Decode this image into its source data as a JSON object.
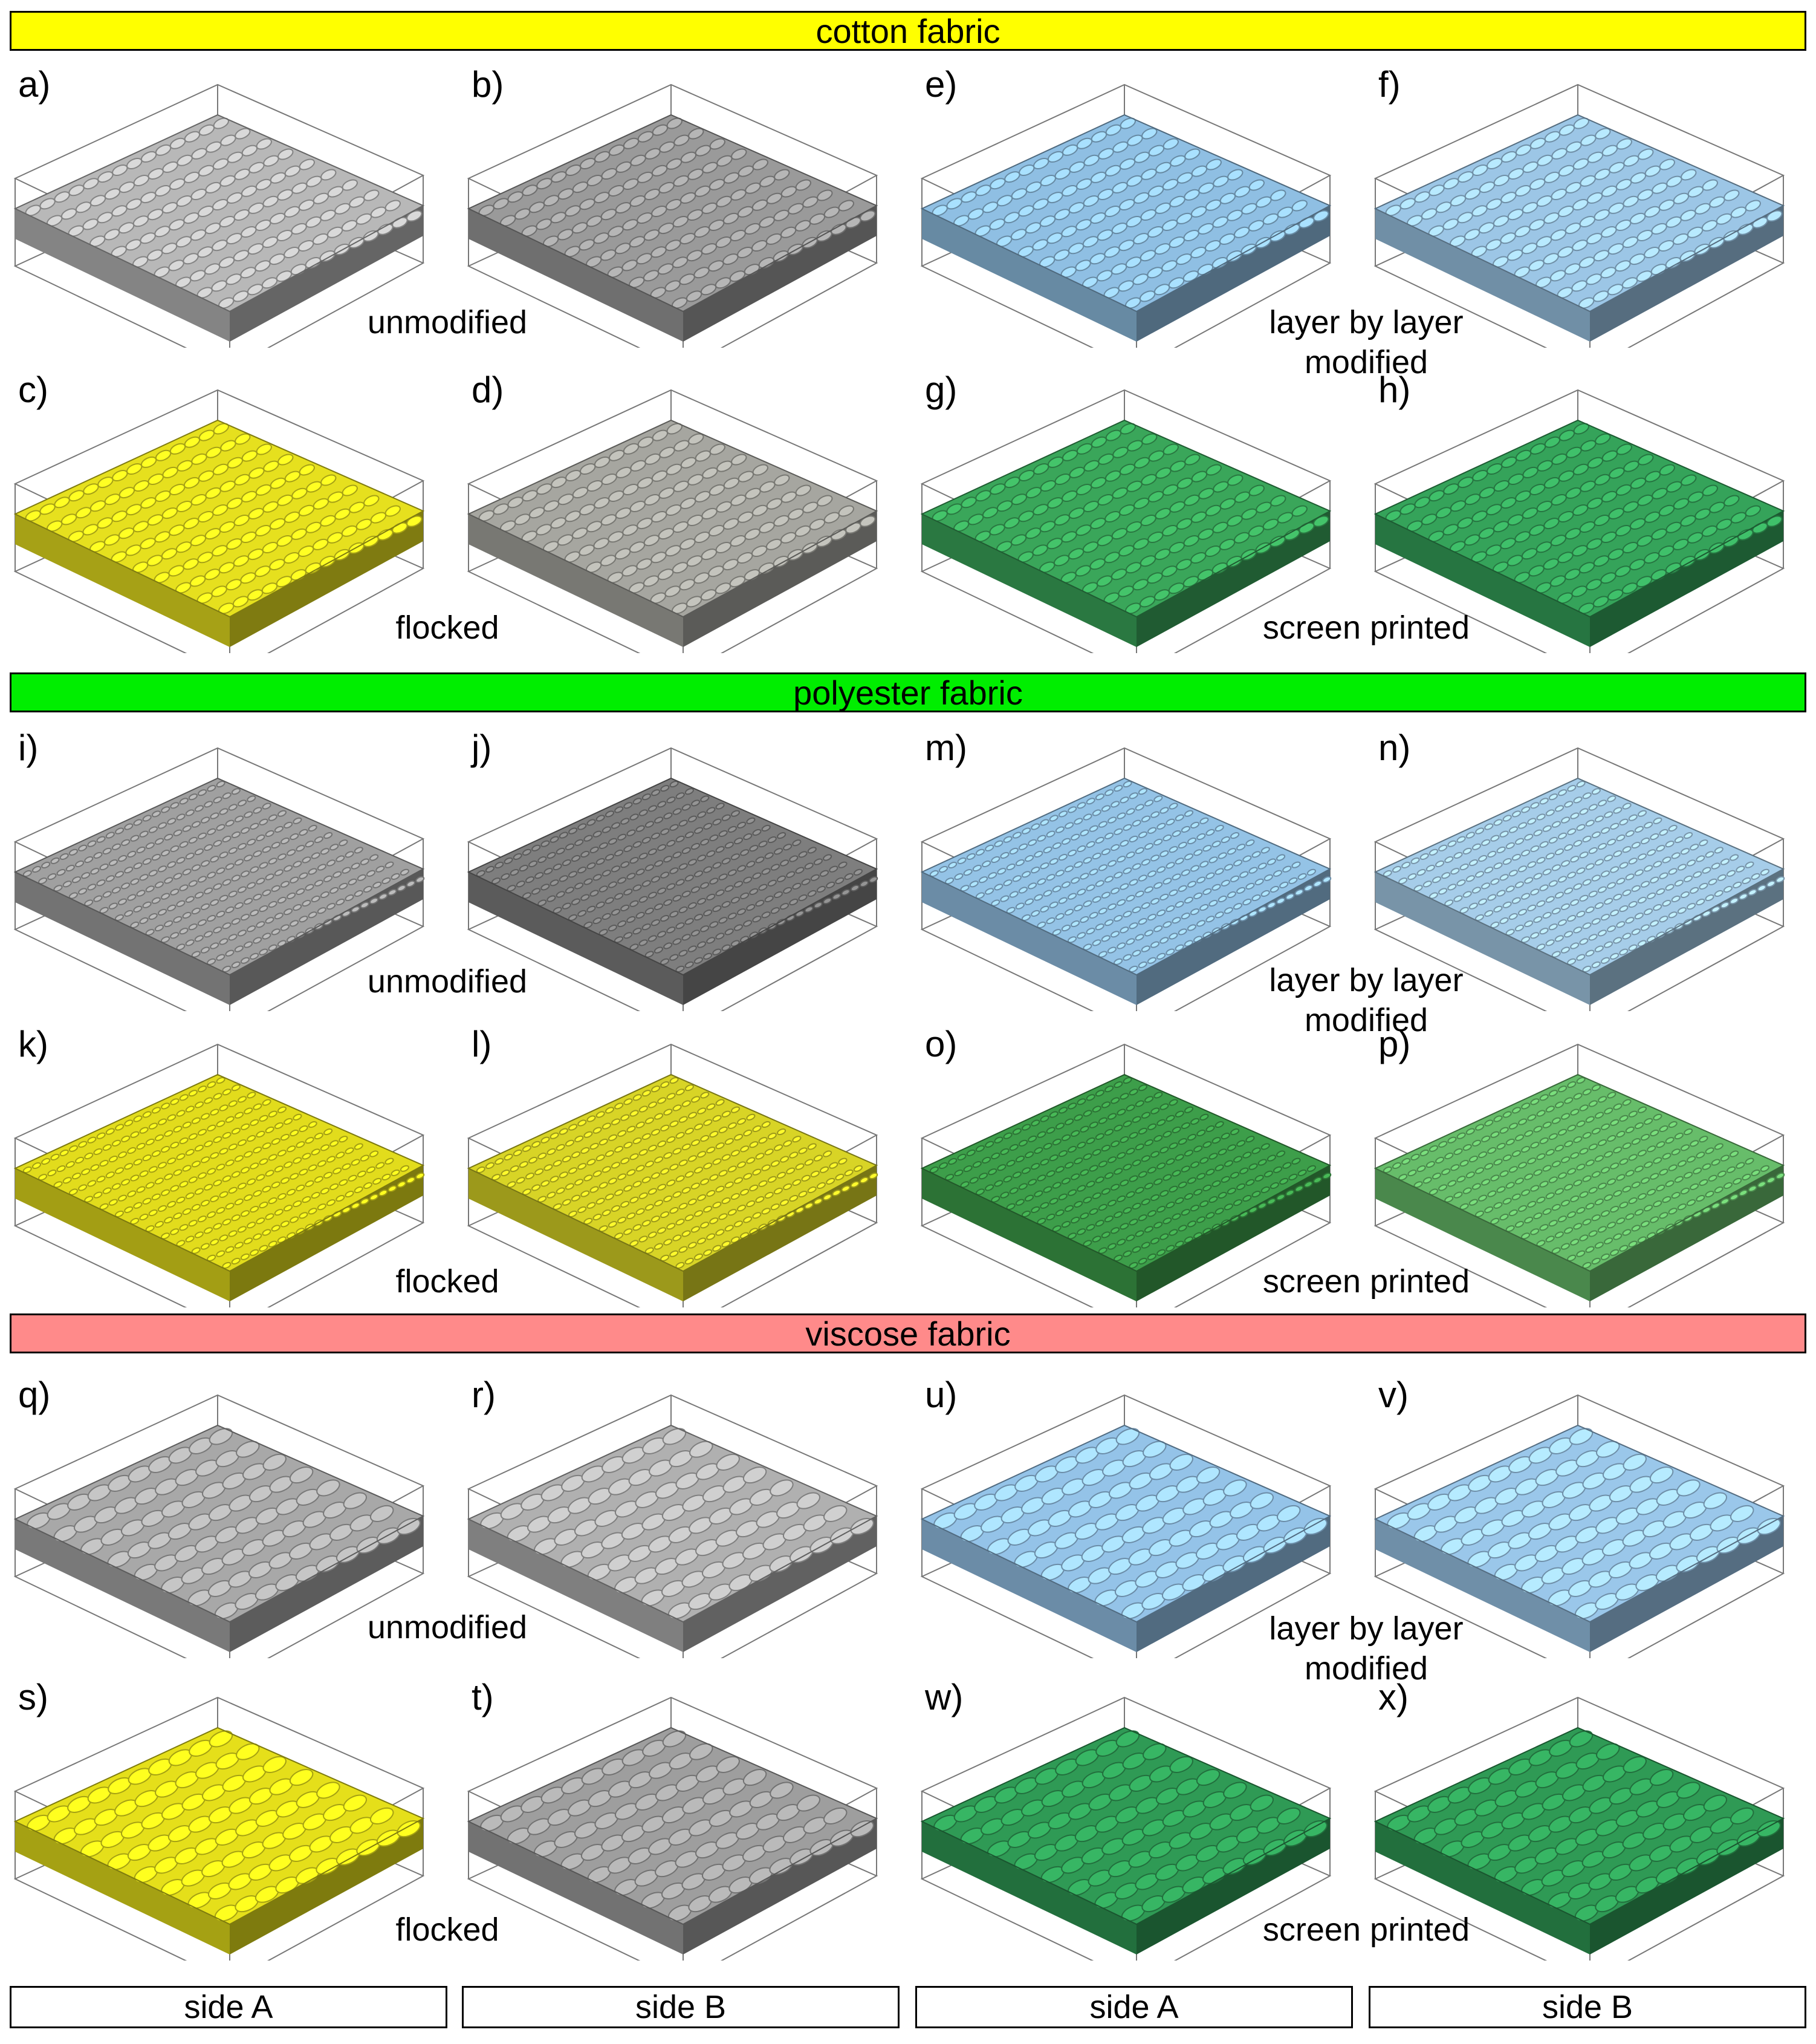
{
  "sections": [
    {
      "title": "cotton fabric",
      "color": "#ffff00",
      "captions": {
        "unmodified": "unmodified",
        "lbl": [
          "layer by layer",
          "modified"
        ],
        "flocked": "flocked",
        "printed": "screen printed"
      },
      "panels": [
        {
          "label": "a)",
          "surface": "#b8b8b8",
          "treatment": "unmodified",
          "texture": "knit"
        },
        {
          "label": "b)",
          "surface": "#9a9a9a",
          "treatment": "unmodified",
          "texture": "knit"
        },
        {
          "label": "e)",
          "surface": "#8fbfe3",
          "treatment": "layer by layer modified",
          "texture": "knit"
        },
        {
          "label": "f)",
          "surface": "#9cc6e6",
          "treatment": "layer by layer modified",
          "texture": "knit"
        },
        {
          "label": "c)",
          "surface": "#e6e01e",
          "treatment": "flocked",
          "texture": "knit"
        },
        {
          "label": "d)",
          "surface": "#a6a6a0",
          "treatment": "flocked",
          "texture": "knit"
        },
        {
          "label": "g)",
          "surface": "#3aa65a",
          "treatment": "screen printed",
          "texture": "knit"
        },
        {
          "label": "h)",
          "surface": "#35a35a",
          "treatment": "screen printed",
          "texture": "knit"
        }
      ]
    },
    {
      "title": "polyester fabric",
      "color": "#00ee00",
      "captions": {
        "unmodified": "unmodified",
        "lbl": [
          "layer by layer",
          "modified"
        ],
        "flocked": "flocked",
        "printed": "screen printed"
      },
      "panels": [
        {
          "label": "i)",
          "surface": "#a0a0a0",
          "treatment": "unmodified",
          "texture": "fine"
        },
        {
          "label": "j)",
          "surface": "#7e7e7e",
          "treatment": "unmodified",
          "texture": "fine"
        },
        {
          "label": "m)",
          "surface": "#94c3e6",
          "treatment": "layer by layer modified",
          "texture": "fine"
        },
        {
          "label": "n)",
          "surface": "#a6cde9",
          "treatment": "layer by layer modified",
          "texture": "fine"
        },
        {
          "label": "k)",
          "surface": "#e2dc1c",
          "treatment": "flocked",
          "texture": "fine"
        },
        {
          "label": "l)",
          "surface": "#d8d426",
          "treatment": "flocked",
          "texture": "fine"
        },
        {
          "label": "o)",
          "surface": "#3d9e4a",
          "treatment": "screen printed",
          "texture": "fine"
        },
        {
          "label": "p)",
          "surface": "#67bd6a",
          "treatment": "screen printed",
          "texture": "fine"
        }
      ]
    },
    {
      "title": "viscose fabric",
      "color": "#ff8a8a",
      "captions": {
        "unmodified": "unmodified",
        "lbl": [
          "layer by layer",
          "modified"
        ],
        "flocked": "flocked",
        "printed": "screen printed"
      },
      "panels": [
        {
          "label": "q)",
          "surface": "#a8a8a8",
          "treatment": "unmodified",
          "texture": "coarse"
        },
        {
          "label": "r)",
          "surface": "#b0b0b0",
          "treatment": "unmodified",
          "texture": "coarse"
        },
        {
          "label": "u)",
          "surface": "#94c3e8",
          "treatment": "layer by layer modified",
          "texture": "coarse"
        },
        {
          "label": "v)",
          "surface": "#9ac7ea",
          "treatment": "layer by layer modified",
          "texture": "coarse"
        },
        {
          "label": "s)",
          "surface": "#e5df1a",
          "treatment": "flocked",
          "texture": "coarse"
        },
        {
          "label": "t)",
          "surface": "#9e9e9e",
          "treatment": "flocked",
          "texture": "coarse"
        },
        {
          "label": "w)",
          "surface": "#2f9a55",
          "treatment": "screen printed",
          "texture": "coarse"
        },
        {
          "label": "x)",
          "surface": "#2f9a55",
          "treatment": "screen printed",
          "texture": "coarse"
        }
      ]
    }
  ],
  "footer": [
    "side A",
    "side B",
    "side A",
    "side B"
  ]
}
